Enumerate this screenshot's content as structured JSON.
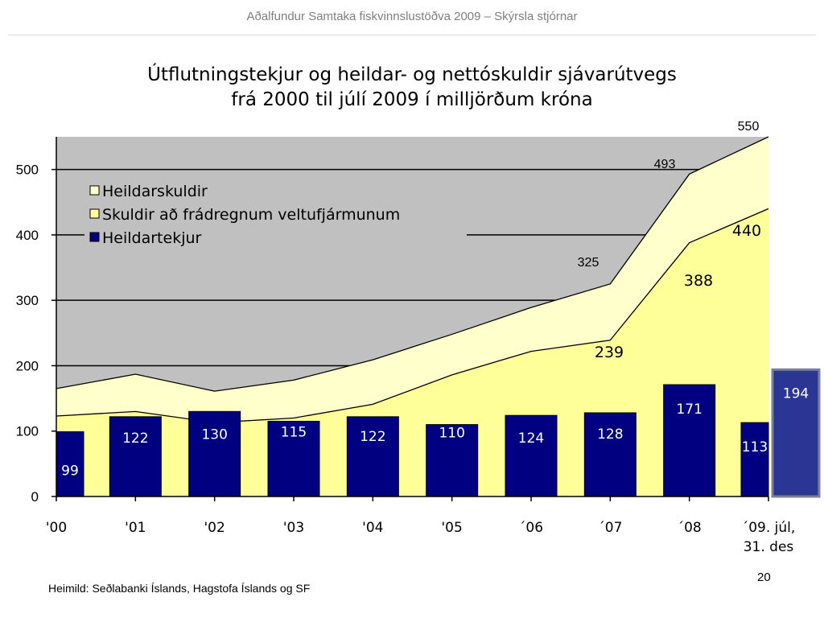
{
  "header": {
    "text": "Aðalfundur Samtaka fiskvinnslustöðva 2009 – Skýrsla stjórnar"
  },
  "slide": {
    "page_number": "20",
    "source": "Heimild: Seðlabanki Íslands, Hagstofa Íslands og SF"
  },
  "chart_data": {
    "type": "area",
    "title_line1": "Útflutningstekjur og heildar- og nettóskuldir sjávarútvegs",
    "title_line2": "frá 2000 til júlí 2009 í milljörðum króna",
    "categories": [
      "'00",
      "'01",
      "'02",
      "'03",
      "'04",
      "'05",
      "´06",
      "´07",
      "´08",
      "´09. júl,"
    ],
    "category_line2": [
      "",
      "",
      "",
      "",
      "",
      "",
      "",
      "",
      "",
      "31. des"
    ],
    "ylim": [
      0,
      550
    ],
    "yticks": [
      0,
      100,
      200,
      300,
      400,
      500
    ],
    "legend_position": "top-left",
    "series": [
      {
        "name": "Heildarskuldir",
        "kind": "area",
        "color": "#ffffcc",
        "values": [
          165,
          187,
          161,
          178,
          209,
          248,
          289,
          325,
          493,
          550
        ],
        "labels": [
          "",
          "",
          "",
          "",
          "",
          "",
          "",
          "325",
          "493",
          "550"
        ]
      },
      {
        "name": "Skuldir að frádregnum veltufjármunum",
        "kind": "area",
        "color": "#ffff99",
        "values": [
          123,
          130,
          113,
          120,
          141,
          186,
          222,
          239,
          388,
          440
        ],
        "labels": [
          "",
          "",
          "",
          "",
          "",
          "",
          "",
          "239",
          "388",
          "440"
        ]
      },
      {
        "name": "Heildartekjur",
        "kind": "bar",
        "color": "#000080",
        "values": [
          99,
          122,
          130,
          115,
          122,
          110,
          124,
          128,
          171,
          113
        ],
        "labels": [
          "99",
          "122",
          "130",
          "115",
          "122",
          "110",
          "124",
          "128",
          "171",
          "113"
        ]
      }
    ],
    "extra_bar": {
      "value": 194,
      "label": "194",
      "color": "#2b3593",
      "category": "31. des"
    }
  }
}
